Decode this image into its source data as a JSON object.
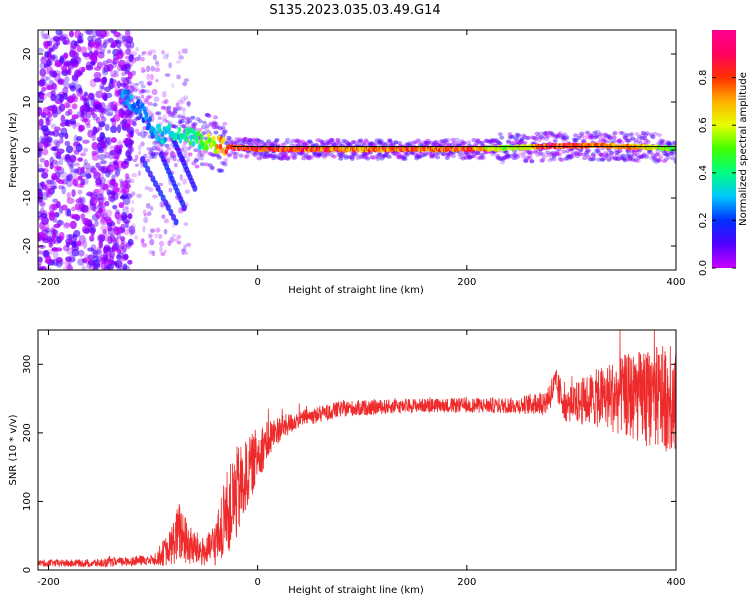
{
  "figure": {
    "title": "S135.2023.035.03.49.G14"
  },
  "chart_data": [
    {
      "type": "heatmap",
      "xlabel": "Height of straight line (km)",
      "ylabel": "Frequency (Hz)",
      "xlim": [
        -210,
        400
      ],
      "ylim": [
        -25,
        25
      ],
      "xticks": [
        -200,
        0,
        200,
        400
      ],
      "yticks": [
        -20,
        -10,
        0,
        10,
        20
      ],
      "grid": false,
      "colorbar": {
        "label": "Normalized spectral amplitude",
        "range": [
          0.0,
          1.0
        ],
        "ticks": [
          0.0,
          0.2,
          0.4,
          0.6,
          0.8
        ],
        "colormap": [
          "#cc00ff",
          "#5000ff",
          "#0030ff",
          "#00c8ff",
          "#00ff80",
          "#40ff00",
          "#e6ff00",
          "#ffb000",
          "#ff3000",
          "#ff0060",
          "#ff0090"
        ]
      },
      "ridge": [
        {
          "x": -125,
          "y": 11,
          "v": 0.3
        },
        {
          "x": -110,
          "y": 8,
          "v": 0.25
        },
        {
          "x": -100,
          "y": 4,
          "v": 0.3
        },
        {
          "x": -90,
          "y": 3,
          "v": 0.35
        },
        {
          "x": -80,
          "y": 4,
          "v": 0.35
        },
        {
          "x": -70,
          "y": 3,
          "v": 0.4
        },
        {
          "x": -55,
          "y": 2,
          "v": 0.45
        },
        {
          "x": -45,
          "y": 1.5,
          "v": 0.6
        },
        {
          "x": -35,
          "y": 1,
          "v": 0.75
        },
        {
          "x": -25,
          "y": 0.5,
          "v": 0.85
        },
        {
          "x": 0,
          "y": 0.2,
          "v": 0.9
        },
        {
          "x": 100,
          "y": 0.1,
          "v": 0.8
        },
        {
          "x": 200,
          "y": 0.2,
          "v": 0.85
        },
        {
          "x": 240,
          "y": 0.4,
          "v": 0.55
        },
        {
          "x": 280,
          "y": 0.8,
          "v": 0.9
        },
        {
          "x": 330,
          "y": 0.9,
          "v": 0.85
        },
        {
          "x": 370,
          "y": 0.6,
          "v": 0.7
        },
        {
          "x": 400,
          "y": 0.3,
          "v": 0.5
        }
      ],
      "reference_line": {
        "x_start": -25,
        "x_end": 400,
        "y": 0.7
      }
    },
    {
      "type": "line",
      "xlabel": "Height of straight line (km)",
      "ylabel": "SNR (10 * v/v)",
      "xlim": [
        -210,
        400
      ],
      "ylim": [
        0,
        350
      ],
      "xticks": [
        -200,
        0,
        200,
        400
      ],
      "yticks": [
        0,
        100,
        200,
        300
      ],
      "grid": false,
      "series": [
        {
          "color": "#ee2a2a",
          "envelope": [
            {
              "x": -210,
              "mean": 10,
              "spread": 5
            },
            {
              "x": -150,
              "mean": 10,
              "spread": 6
            },
            {
              "x": -100,
              "mean": 15,
              "spread": 8
            },
            {
              "x": -85,
              "mean": 30,
              "spread": 25
            },
            {
              "x": -75,
              "mean": 55,
              "spread": 45
            },
            {
              "x": -65,
              "mean": 35,
              "spread": 30
            },
            {
              "x": -50,
              "mean": 25,
              "spread": 20
            },
            {
              "x": -40,
              "mean": 40,
              "spread": 35
            },
            {
              "x": -30,
              "mean": 80,
              "spread": 60
            },
            {
              "x": -20,
              "mean": 110,
              "spread": 70
            },
            {
              "x": -10,
              "mean": 140,
              "spread": 50
            },
            {
              "x": 0,
              "mean": 170,
              "spread": 40
            },
            {
              "x": 10,
              "mean": 190,
              "spread": 30
            },
            {
              "x": 20,
              "mean": 205,
              "spread": 20
            },
            {
              "x": 40,
              "mean": 220,
              "spread": 12
            },
            {
              "x": 80,
              "mean": 235,
              "spread": 12
            },
            {
              "x": 150,
              "mean": 240,
              "spread": 10
            },
            {
              "x": 250,
              "mean": 240,
              "spread": 12
            },
            {
              "x": 275,
              "mean": 245,
              "spread": 20
            },
            {
              "x": 285,
              "mean": 270,
              "spread": 25
            },
            {
              "x": 295,
              "mean": 240,
              "spread": 25
            },
            {
              "x": 320,
              "mean": 250,
              "spread": 40
            },
            {
              "x": 350,
              "mean": 255,
              "spread": 60
            },
            {
              "x": 380,
              "mean": 250,
              "spread": 75
            },
            {
              "x": 400,
              "mean": 250,
              "spread": 80
            }
          ]
        }
      ]
    }
  ]
}
